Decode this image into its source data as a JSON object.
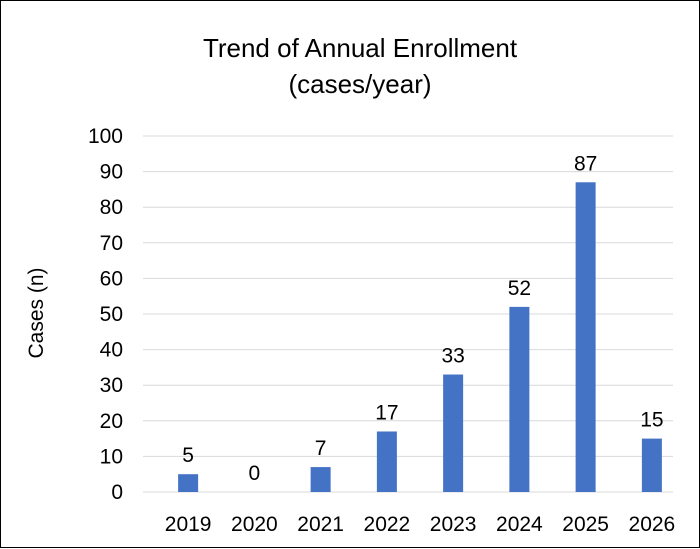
{
  "chart_data": {
    "type": "bar",
    "title": "Trend of Annual Enrollment",
    "subtitle": "(cases/year)",
    "xlabel": "",
    "ylabel": "Cases (n)",
    "categories": [
      "2019",
      "2020",
      "2021",
      "2022",
      "2023",
      "2024",
      "2025",
      "2026"
    ],
    "values": [
      5,
      0,
      7,
      17,
      33,
      52,
      87,
      15
    ],
    "data_labels": [
      "5",
      "0",
      "7",
      "17",
      "33",
      "52",
      "87",
      "15"
    ],
    "ylim": [
      0,
      100
    ],
    "yticks": [
      0,
      10,
      20,
      30,
      40,
      50,
      60,
      70,
      80,
      90,
      100
    ],
    "grid": true,
    "legend": "none",
    "bar_color": "#4472c4"
  }
}
